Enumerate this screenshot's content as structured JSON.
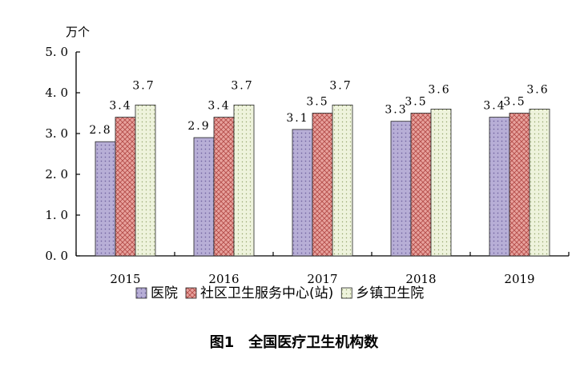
{
  "chart_data": {
    "type": "bar",
    "ylabel": "万个",
    "ylim": [
      0,
      5
    ],
    "yticks": [
      "0. 0",
      "1. 0",
      "2. 0",
      "3. 0",
      "4. 0",
      "5. 0"
    ],
    "categories": [
      "2015",
      "2016",
      "2017",
      "2018",
      "2019"
    ],
    "series": [
      {
        "name": "医院",
        "values": [
          2.8,
          2.9,
          3.1,
          3.3,
          3.4
        ],
        "labels": [
          "2.8",
          "2.9",
          "3.1",
          "3.3",
          "3.4"
        ],
        "color": "#b7aed6",
        "pattern": "dots"
      },
      {
        "name": "社区卫生服务中心(站)",
        "values": [
          3.4,
          3.4,
          3.5,
          3.5,
          3.5
        ],
        "labels": [
          "3.4",
          "3.4",
          "3.5",
          "3.5",
          "3.5"
        ],
        "color": "#e39a95",
        "pattern": "grid"
      },
      {
        "name": "乡镇卫生院",
        "values": [
          3.7,
          3.7,
          3.7,
          3.6,
          3.6
        ],
        "labels": [
          "3.7",
          "3.7",
          "3.7",
          "3.6",
          "3.6"
        ],
        "color": "#eaf0d6",
        "pattern": "dots"
      }
    ],
    "title": "图1　全国医疗卫生机构数",
    "legend": "bottom",
    "grid": false
  }
}
